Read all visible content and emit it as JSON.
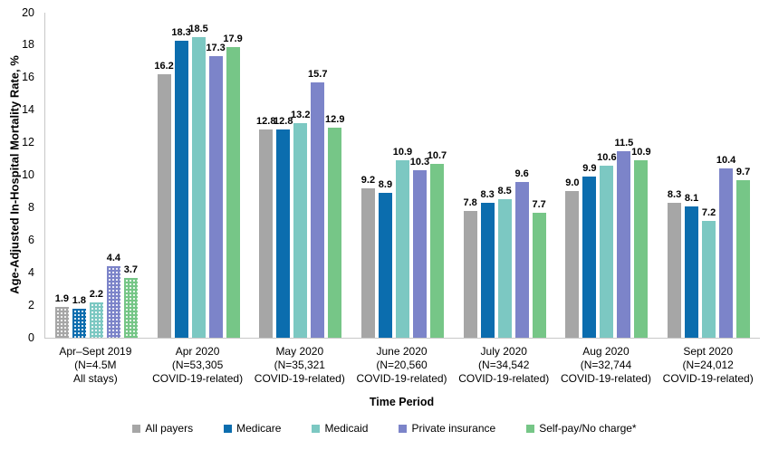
{
  "chart_data": {
    "type": "bar",
    "title": "",
    "ylabel": "Age-Adjusted In-Hospital Mortality Rate, %",
    "xlabel": "Time Period",
    "ylim": [
      0,
      20
    ],
    "ytick_step": 2,
    "grid": false,
    "legend_position": "bottom",
    "value_label_decimals": 1,
    "axis_color": "#C8C8C8",
    "text_color": "#000000",
    "categories": [
      {
        "label_lines": [
          "Apr–Sept 2019",
          "(N=4.5M",
          "All stays)"
        ],
        "dotted": true
      },
      {
        "label_lines": [
          "Apr 2020",
          "(N=53,305",
          "COVID-19-related)"
        ],
        "dotted": false
      },
      {
        "label_lines": [
          "May 2020",
          "(N=35,321",
          "COVID-19-related)"
        ],
        "dotted": false
      },
      {
        "label_lines": [
          "June 2020",
          "(N=20,560",
          "COVID-19-related)"
        ],
        "dotted": false
      },
      {
        "label_lines": [
          "July 2020",
          "(N=34,542",
          "COVID-19-related)"
        ],
        "dotted": false
      },
      {
        "label_lines": [
          "Aug 2020",
          "(N=32,744",
          "COVID-19-related)"
        ],
        "dotted": false
      },
      {
        "label_lines": [
          "Sept 2020",
          "(N=24,012",
          "COVID-19-related)"
        ],
        "dotted": false
      }
    ],
    "series": [
      {
        "name": "All payers",
        "color": "#A6A6A6",
        "values": [
          1.9,
          16.2,
          12.8,
          9.2,
          7.8,
          9.0,
          8.3
        ]
      },
      {
        "name": "Medicare",
        "color": "#0B6DAE",
        "values": [
          1.8,
          18.3,
          12.8,
          8.9,
          8.3,
          9.9,
          8.1
        ]
      },
      {
        "name": "Medicaid",
        "color": "#7CC8C2",
        "values": [
          2.2,
          18.5,
          13.2,
          10.9,
          8.5,
          10.6,
          7.2
        ]
      },
      {
        "name": "Private insurance",
        "color": "#7C84C9",
        "values": [
          4.4,
          17.3,
          15.7,
          10.3,
          9.6,
          11.5,
          10.4
        ]
      },
      {
        "name": "Self-pay/No charge*",
        "color": "#76C687",
        "values": [
          3.7,
          17.9,
          12.9,
          10.7,
          7.7,
          10.9,
          9.7
        ]
      }
    ]
  }
}
